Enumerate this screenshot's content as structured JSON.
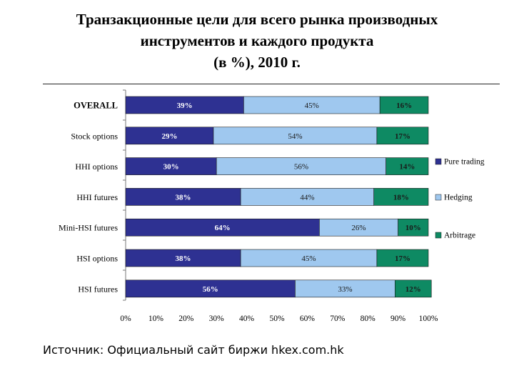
{
  "title_lines": [
    "Транзакционные цели для всего рынка производных",
    "инструментов и каждого продукта",
    "(в %), 2010 г."
  ],
  "source": "Источник: Официальный сайт биржи hkex.com.hk",
  "chart_data": {
    "type": "bar",
    "orientation": "horizontal",
    "stacked": true,
    "title": "Транзакционные цели для всего рынка производных инструментов и каждого продукта (в %), 2010 г.",
    "categories": [
      "OVERALL",
      "Stock options",
      "HHI options",
      "HHI futures",
      "Mini-HSI futures",
      "HSI options",
      "HSI futures"
    ],
    "series": [
      {
        "name": "Pure trading",
        "color": "#2e3192",
        "values": [
          39,
          29,
          30,
          38,
          64,
          38,
          56
        ]
      },
      {
        "name": "Hedging",
        "color": "#9fc8ef",
        "values": [
          45,
          54,
          56,
          44,
          26,
          45,
          33
        ]
      },
      {
        "name": "Arbitrage",
        "color": "#0e8a63",
        "values": [
          16,
          17,
          14,
          18,
          10,
          17,
          12
        ]
      }
    ],
    "value_labels": [
      [
        "39%",
        "45%",
        "16%"
      ],
      [
        "29%",
        "54%",
        "17%"
      ],
      [
        "30%",
        "56%",
        "14%"
      ],
      [
        "38%",
        "44%",
        "18%"
      ],
      [
        "64%",
        "26%",
        "10%"
      ],
      [
        "38%",
        "45%",
        "17%"
      ],
      [
        "56%",
        "33%",
        "12%"
      ]
    ],
    "x_ticks": [
      "0%",
      "10%",
      "20%",
      "30%",
      "40%",
      "50%",
      "60%",
      "70%",
      "80%",
      "90%",
      "100%"
    ],
    "xlim": [
      0,
      100
    ],
    "legend_position": "right",
    "grid": false
  }
}
